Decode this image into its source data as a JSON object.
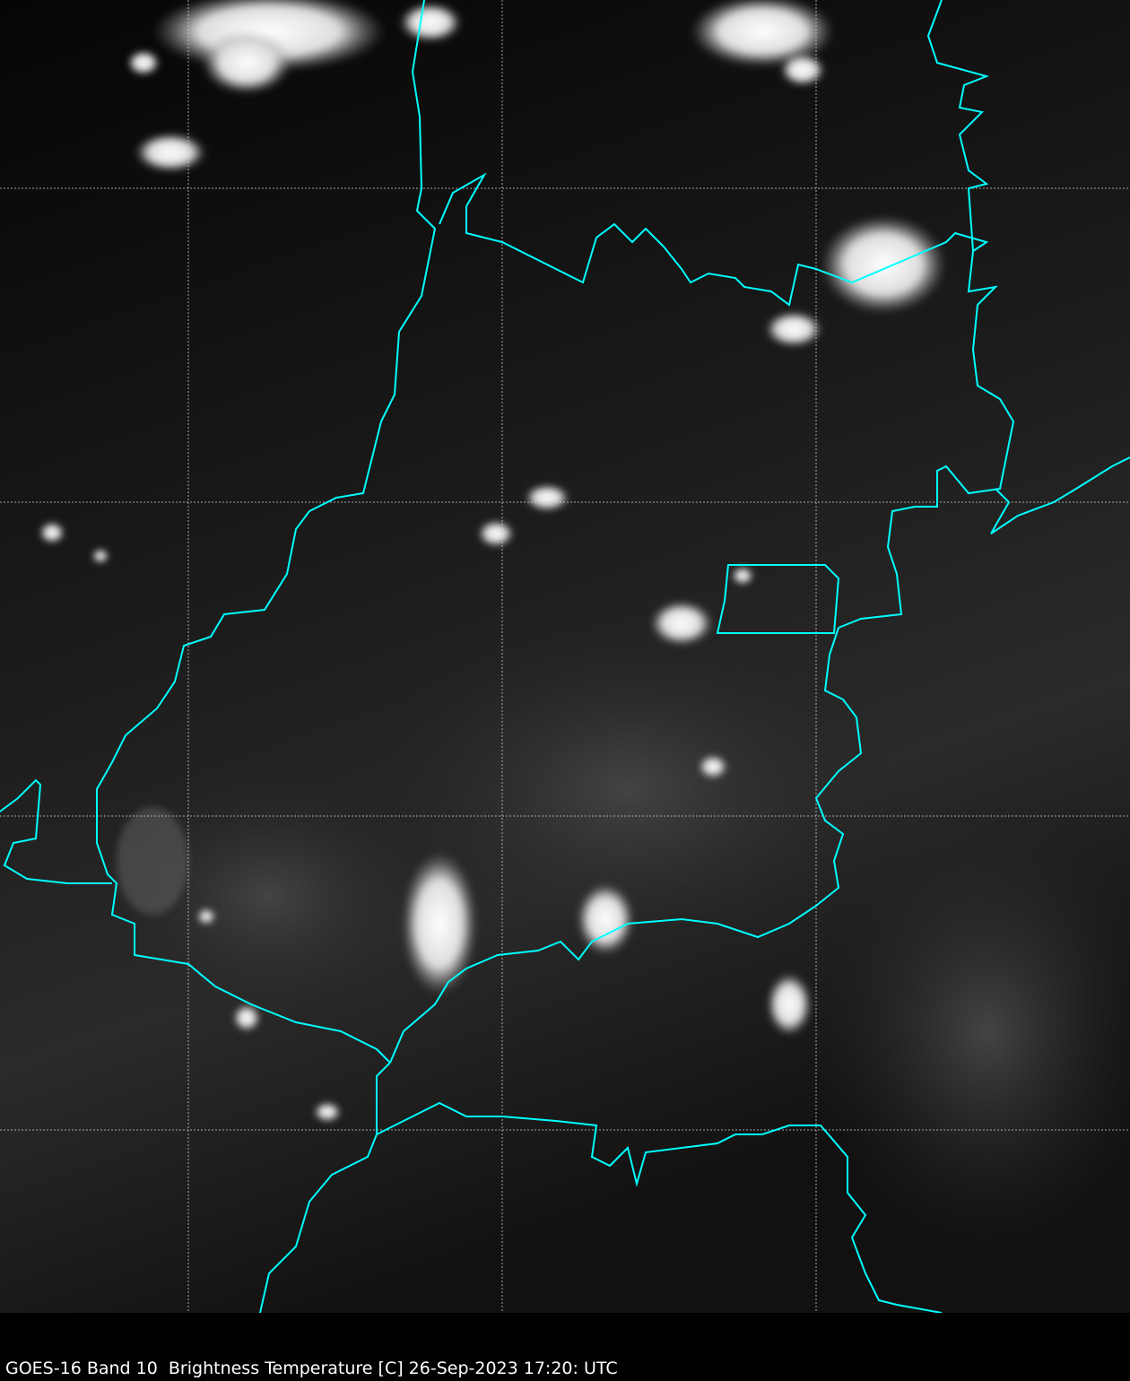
{
  "caption": "GOES-16 Band 10  Brightness Temperature [C] 26-Sep-2023 17:20: UTC",
  "colors": {
    "border": "#00ffff",
    "grid": "#cccccc",
    "background": "#000000"
  },
  "colormap": "grayscale"
}
